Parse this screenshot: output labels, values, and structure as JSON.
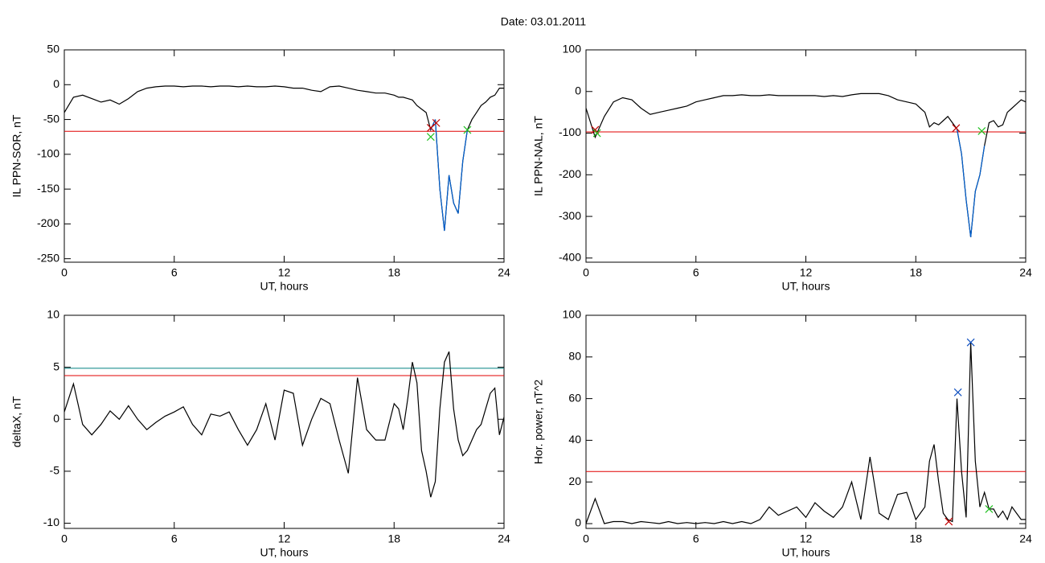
{
  "title": "Date:  03.01.2011",
  "chart_data": [
    {
      "type": "line",
      "x_label": "UT, hours",
      "y_label": "IL PPN-SOR, nT",
      "xlim": [
        0,
        24
      ],
      "xticks": [
        0,
        6,
        12,
        18,
        24
      ],
      "ylim": [
        -255,
        50
      ],
      "yticks": [
        50,
        0,
        -50,
        -100,
        -150,
        -200,
        -250
      ],
      "x": [
        0,
        0.5,
        1,
        1.5,
        2,
        2.5,
        3,
        3.5,
        4,
        4.5,
        5,
        5.5,
        6,
        6.5,
        7,
        7.5,
        8,
        8.5,
        9,
        9.5,
        10,
        10.5,
        11,
        11.5,
        12,
        12.5,
        13,
        13.5,
        14,
        14.5,
        15,
        15.5,
        16,
        16.5,
        17,
        17.5,
        18,
        18.25,
        18.5,
        18.75,
        19,
        19.25,
        19.5,
        19.75,
        20,
        20.25,
        20.5,
        20.75,
        21,
        21.25,
        21.5,
        21.75,
        22,
        22.25,
        22.5,
        22.75,
        23,
        23.25,
        23.5,
        23.75,
        24
      ],
      "series": [
        {
          "color": "#000000",
          "values": [
            -40,
            -18,
            -15,
            -20,
            -25,
            -22,
            -28,
            -20,
            -10,
            -5,
            -3,
            -2,
            -2,
            -3,
            -2,
            -2,
            -3,
            -2,
            -2,
            -3,
            -2,
            -3,
            -3,
            -2,
            -3,
            -5,
            -5,
            -8,
            -10,
            -3,
            -2,
            -5,
            -8,
            -10,
            -12,
            -12,
            -15,
            -18,
            -18,
            -20,
            -22,
            -30,
            -35,
            -40,
            -65,
            -50,
            -150,
            -210,
            -130,
            -170,
            -185,
            -110,
            -65,
            -50,
            -40,
            -30,
            -25,
            -18,
            -15,
            -5,
            -5
          ]
        }
      ],
      "highlight_range": [
        20,
        22
      ],
      "highlight_color": "#0060d0",
      "hlines": [
        {
          "value": -67,
          "color": "#e00000"
        }
      ],
      "markers": [
        {
          "x": 20,
          "y": -62,
          "color": "#c00000"
        },
        {
          "x": 20.3,
          "y": -55,
          "color": "#c00000"
        },
        {
          "x": 20,
          "y": -75,
          "color": "#20c020"
        },
        {
          "x": 22,
          "y": -65,
          "color": "#20c020"
        }
      ]
    },
    {
      "type": "line",
      "x_label": "UT, hours",
      "y_label": "IL PPN-NAL, nT",
      "xlim": [
        0,
        24
      ],
      "xticks": [
        0,
        6,
        12,
        18,
        24
      ],
      "ylim": [
        -410,
        100
      ],
      "yticks": [
        100,
        0,
        -100,
        -200,
        -300,
        -400
      ],
      "x": [
        0,
        0.5,
        1,
        1.5,
        2,
        2.5,
        3,
        3.5,
        4,
        4.5,
        5,
        5.5,
        6,
        6.5,
        7,
        7.5,
        8,
        8.5,
        9,
        9.5,
        10,
        10.5,
        11,
        11.5,
        12,
        12.5,
        13,
        13.5,
        14,
        14.5,
        15,
        15.5,
        16,
        16.5,
        17,
        17.5,
        18,
        18.25,
        18.5,
        18.75,
        19,
        19.25,
        19.5,
        19.75,
        20,
        20.25,
        20.5,
        20.75,
        21,
        21.25,
        21.5,
        21.75,
        22,
        22.25,
        22.5,
        22.75,
        23,
        23.25,
        23.5,
        23.75,
        24
      ],
      "series": [
        {
          "color": "#000000",
          "values": [
            -40,
            -110,
            -60,
            -25,
            -15,
            -20,
            -40,
            -55,
            -50,
            -45,
            -40,
            -35,
            -25,
            -20,
            -15,
            -10,
            -10,
            -8,
            -10,
            -10,
            -8,
            -10,
            -10,
            -10,
            -10,
            -10,
            -12,
            -10,
            -12,
            -8,
            -5,
            -5,
            -5,
            -10,
            -20,
            -25,
            -30,
            -40,
            -50,
            -85,
            -75,
            -80,
            -70,
            -60,
            -75,
            -90,
            -150,
            -260,
            -350,
            -240,
            -200,
            -130,
            -75,
            -70,
            -85,
            -80,
            -50,
            -40,
            -30,
            -20,
            -25
          ]
        }
      ],
      "highlight_range": [
        20.25,
        21.75
      ],
      "highlight_color": "#0060d0",
      "hlines": [
        {
          "value": -97,
          "color": "#e00000"
        }
      ],
      "markers": [
        {
          "x": 0.5,
          "y": -92,
          "color": "#c00000"
        },
        {
          "x": 20.2,
          "y": -88,
          "color": "#c00000"
        },
        {
          "x": 0.6,
          "y": -100,
          "color": "#20c020"
        },
        {
          "x": 21.6,
          "y": -95,
          "color": "#20c020"
        }
      ]
    },
    {
      "type": "line",
      "x_label": "UT, hours",
      "y_label": "deltaX, nT",
      "xlim": [
        0,
        24
      ],
      "xticks": [
        0,
        6,
        12,
        18,
        24
      ],
      "ylim": [
        -10.5,
        10
      ],
      "yticks": [
        10,
        5,
        0,
        -5,
        -10
      ],
      "x": [
        0,
        0.5,
        1,
        1.5,
        2,
        2.5,
        3,
        3.5,
        4,
        4.5,
        5,
        5.5,
        6,
        6.5,
        7,
        7.5,
        8,
        8.5,
        9,
        9.5,
        10,
        10.5,
        11,
        11.5,
        12,
        12.5,
        13,
        13.5,
        14,
        14.5,
        15,
        15.5,
        16,
        16.5,
        17,
        17.5,
        18,
        18.25,
        18.5,
        18.75,
        19,
        19.25,
        19.5,
        19.75,
        20,
        20.25,
        20.5,
        20.75,
        21,
        21.25,
        21.5,
        21.75,
        22,
        22.25,
        22.5,
        22.75,
        23,
        23.25,
        23.5,
        23.75,
        24
      ],
      "series": [
        {
          "color": "#000000",
          "values": [
            0.7,
            3.4,
            -0.5,
            -1.5,
            -0.5,
            0.8,
            0,
            1.3,
            0,
            -1,
            -0.3,
            0.3,
            0.7,
            1.2,
            -0.5,
            -1.5,
            0.5,
            0.3,
            0.7,
            -1,
            -2.5,
            -1,
            1.5,
            -2,
            2.8,
            2.5,
            -2.5,
            0,
            2,
            1.5,
            -2,
            -5.2,
            4,
            -1,
            -2,
            -2,
            1.5,
            1,
            -1,
            2,
            5.5,
            3.5,
            -3,
            -5,
            -7.5,
            -6,
            1,
            5.5,
            6.5,
            1,
            -2,
            -3.5,
            -3,
            -2,
            -1,
            -0.5,
            1,
            2.5,
            3,
            -1.5,
            0.2
          ]
        }
      ],
      "hlines": [
        {
          "value": 4.9,
          "color": "#008080"
        },
        {
          "value": 4.2,
          "color": "#e00000"
        }
      ],
      "markers": []
    },
    {
      "type": "line",
      "x_label": "UT, hours",
      "y_label": "Hor. power, nT^2",
      "xlim": [
        0,
        24
      ],
      "xticks": [
        0,
        6,
        12,
        18,
        24
      ],
      "ylim": [
        -2.3,
        100
      ],
      "yticks": [
        0,
        20,
        40,
        60,
        80,
        100
      ],
      "x": [
        0,
        0.5,
        1,
        1.5,
        2,
        2.5,
        3,
        3.5,
        4,
        4.5,
        5,
        5.5,
        6,
        6.5,
        7,
        7.5,
        8,
        8.5,
        9,
        9.5,
        10,
        10.5,
        11,
        11.5,
        12,
        12.5,
        13,
        13.5,
        14,
        14.5,
        15,
        15.5,
        16,
        16.5,
        17,
        17.5,
        18,
        18.25,
        18.5,
        18.75,
        19,
        19.25,
        19.5,
        19.75,
        20,
        20.25,
        20.5,
        20.75,
        21,
        21.25,
        21.5,
        21.75,
        22,
        22.25,
        22.5,
        22.75,
        23,
        23.25,
        23.5,
        23.75,
        24
      ],
      "series": [
        {
          "color": "#000000",
          "values": [
            0,
            12,
            0,
            1,
            1,
            0,
            1,
            0.5,
            0,
            1,
            0,
            0.5,
            0,
            0.5,
            0,
            1,
            0,
            1,
            0,
            2,
            8,
            4,
            6,
            8,
            3,
            10,
            6,
            3,
            8,
            20,
            2,
            32,
            5,
            2,
            14,
            15,
            2,
            5,
            8,
            30,
            38,
            20,
            5,
            2,
            1,
            60,
            25,
            3,
            87,
            30,
            8,
            15,
            7,
            7,
            3,
            6,
            2,
            8,
            5,
            2,
            2
          ]
        }
      ],
      "hlines": [
        {
          "value": 25,
          "color": "#e00000"
        }
      ],
      "markers": [
        {
          "x": 20.3,
          "y": 63,
          "color": "#1050c0"
        },
        {
          "x": 21,
          "y": 87,
          "color": "#1050c0"
        },
        {
          "x": 19.8,
          "y": 1,
          "color": "#c00000"
        },
        {
          "x": 22,
          "y": 7,
          "color": "#20c020"
        }
      ]
    }
  ]
}
